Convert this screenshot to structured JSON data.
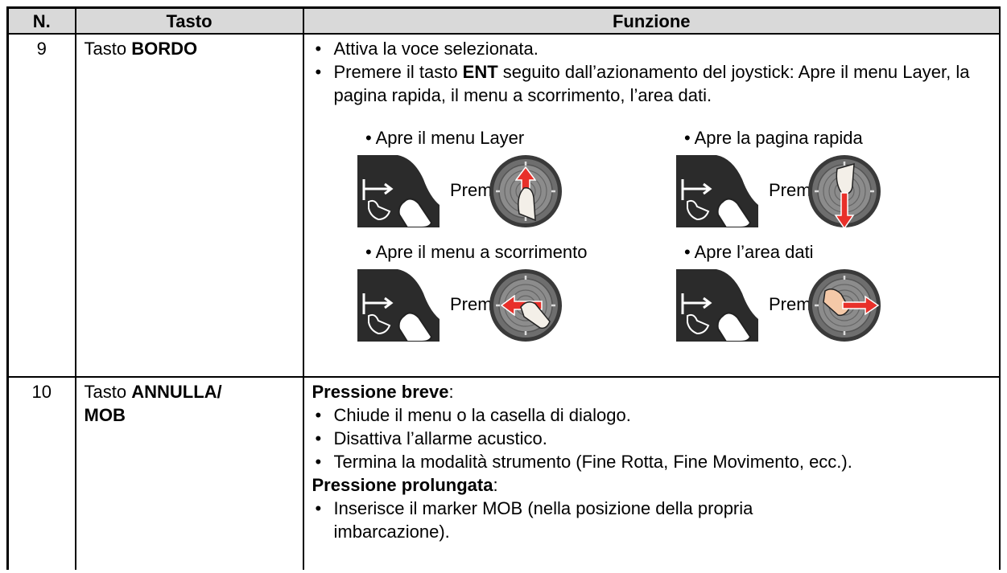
{
  "table": {
    "header": [
      "N.",
      "Tasto",
      "Funzione"
    ],
    "rows": [
      {
        "n": "9",
        "key": [
          "Tasto ",
          "BORDO"
        ],
        "function": {
          "bullets": [
            [
              "Attiva la voce selezionata."
            ],
            [
              "Premere il tasto ",
              "ENT",
              " seguito dall’azionamento del joystick: Apre il menu Layer, la pagina rapida, il menu a scorrimento, l’area dati."
            ]
          ],
          "figures": [
            {
              "caption": "• Apre il menu Layer",
              "label": "Premere"
            },
            {
              "caption": "• Apre la pagina rapida",
              "label": "Premere"
            },
            {
              "caption": "• Apre il menu a scorrimento",
              "label": "Premere"
            },
            {
              "caption": "• Apre l’area dati",
              "label": "Premere"
            }
          ]
        }
      },
      {
        "n": "10",
        "key": [
          "Tasto ",
          "ANNULLA/",
          "MOB"
        ],
        "function": {
          "sections": [
            {
              "heading": [
                "Pressione breve",
                ":"
              ],
              "bullets": [
                "Chiude il menu o la casella di dialogo.",
                "Disattiva l’allarme acustico.",
                "Termina la modalità strumento (Fine Rotta, Fine Movimento, ecc.)."
              ]
            },
            {
              "heading": [
                "Pressione prolungata",
                ":"
              ],
              "bullets": [
                "Inserisce il marker MOB (nella posizione della propria imbarcazione)."
              ]
            }
          ]
        }
      }
    ]
  }
}
